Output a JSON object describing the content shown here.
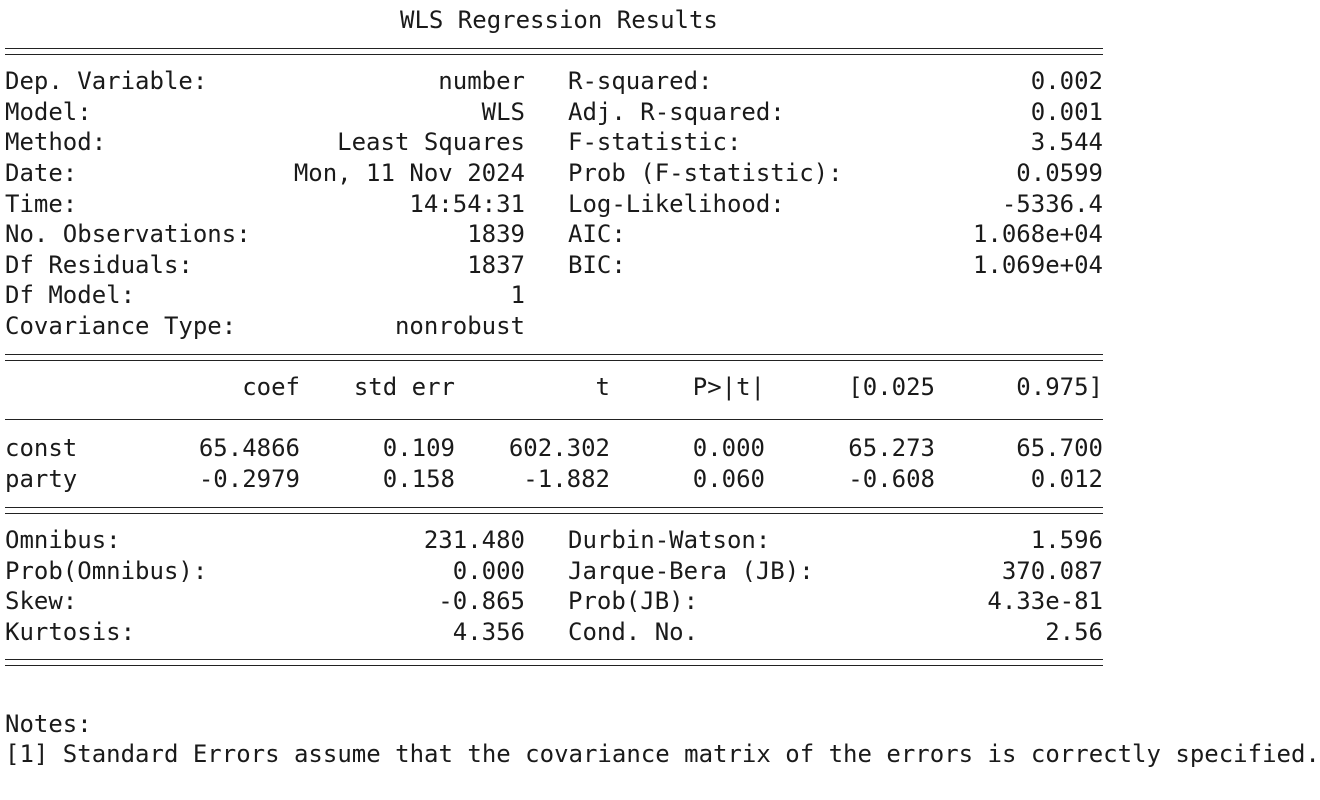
{
  "title": "WLS Regression Results",
  "summary_rows": [
    {
      "label": "Dep. Variable:",
      "value": "number",
      "label2": "R-squared:",
      "value2": "0.002"
    },
    {
      "label": "Model:",
      "value": "WLS",
      "label2": "Adj. R-squared:",
      "value2": "0.001"
    },
    {
      "label": "Method:",
      "value": "Least Squares",
      "label2": "F-statistic:",
      "value2": "3.544"
    },
    {
      "label": "Date:",
      "value": "Mon, 11 Nov 2024",
      "label2": "Prob (F-statistic):",
      "value2": "0.0599"
    },
    {
      "label": "Time:",
      "value": "14:54:31",
      "label2": "Log-Likelihood:",
      "value2": "-5336.4"
    },
    {
      "label": "No. Observations:",
      "value": "1839",
      "label2": "AIC:",
      "value2": "1.068e+04"
    },
    {
      "label": "Df Residuals:",
      "value": "1837",
      "label2": "BIC:",
      "value2": "1.069e+04"
    },
    {
      "label": "Df Model:",
      "value": "1",
      "label2": "",
      "value2": ""
    },
    {
      "label": "Covariance Type:",
      "value": "nonrobust",
      "label2": "",
      "value2": ""
    }
  ],
  "coef_table": {
    "headers": [
      "coef",
      "std err",
      "t",
      "P>|t|",
      "[0.025",
      "0.975]"
    ],
    "rows": [
      {
        "name": "const",
        "values": [
          "65.4866",
          "0.109",
          "602.302",
          "0.000",
          "65.273",
          "65.700"
        ]
      },
      {
        "name": "party",
        "values": [
          "-0.2979",
          "0.158",
          "-1.882",
          "0.060",
          "-0.608",
          "0.012"
        ]
      }
    ]
  },
  "diagnostics_rows": [
    {
      "label": "Omnibus:",
      "value": "231.480",
      "label2": "Durbin-Watson:",
      "value2": "1.596"
    },
    {
      "label": "Prob(Omnibus):",
      "value": "0.000",
      "label2": "Jarque-Bera (JB):",
      "value2": "370.087"
    },
    {
      "label": "Skew:",
      "value": "-0.865",
      "label2": "Prob(JB):",
      "value2": "4.33e-81"
    },
    {
      "label": "Kurtosis:",
      "value": "4.356",
      "label2": "Cond. No.",
      "value2": "2.56"
    }
  ],
  "notes": {
    "heading": "Notes:",
    "items": [
      "[1] Standard Errors assume that the covariance matrix of the errors is correctly specified."
    ]
  }
}
